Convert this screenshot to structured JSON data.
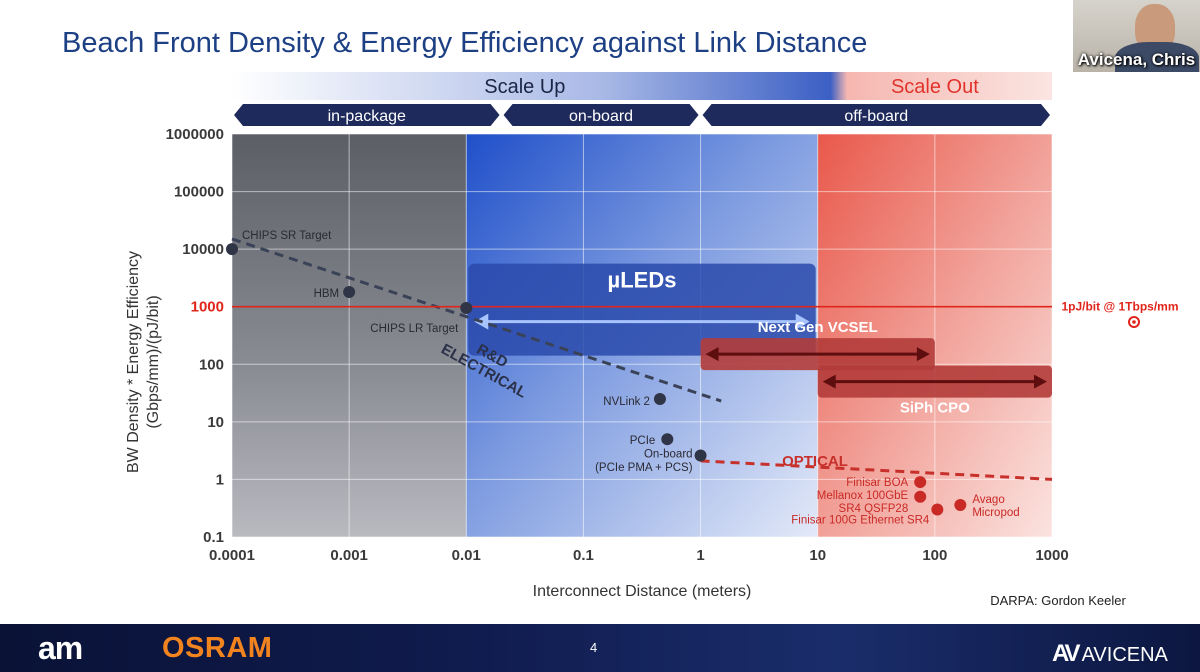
{
  "slide": {
    "title": "Beach Front Density & Energy Efficiency against Link Distance",
    "presenter_name": "Avicena, Chris",
    "page_number": "4",
    "source_credit": "DARPA:  Gordon Keeler",
    "footer_logo_left_1": "am",
    "footer_logo_left_2": "OSRAM",
    "footer_logo_right": "AVICENA",
    "footer_logo_right_mark": "AV"
  },
  "chart_data": {
    "type": "scatter",
    "xlabel": "Interconnect Distance (meters)",
    "ylabel_line1": "BW Density  *  Energy Efficiency",
    "ylabel_line2": "(Gbps/mm)/(pJ/bit)",
    "x_scale": "log",
    "y_scale": "log",
    "xlim": [
      0.0001,
      1000
    ],
    "ylim": [
      0.1,
      1000000
    ],
    "x_ticks": [
      {
        "v": 0.0001,
        "label": "0.0001"
      },
      {
        "v": 0.001,
        "label": "0.001"
      },
      {
        "v": 0.01,
        "label": "0.01"
      },
      {
        "v": 0.1,
        "label": "0.1"
      },
      {
        "v": 1,
        "label": "1"
      },
      {
        "v": 10,
        "label": "10"
      },
      {
        "v": 100,
        "label": "100"
      },
      {
        "v": 1000,
        "label": "1000"
      }
    ],
    "y_ticks": [
      {
        "v": 0.1,
        "label": "0.1"
      },
      {
        "v": 1,
        "label": "1"
      },
      {
        "v": 10,
        "label": "10"
      },
      {
        "v": 100,
        "label": "100"
      },
      {
        "v": 1000,
        "label": "1000"
      },
      {
        "v": 10000,
        "label": "10000"
      },
      {
        "v": 100000,
        "label": "100000"
      },
      {
        "v": 1000000,
        "label": "1000000"
      }
    ],
    "grid": true,
    "top_bands": [
      {
        "label": "Scale Up",
        "x_from": 0.0001,
        "x_to": 10,
        "color": "#2d4ea3"
      },
      {
        "label": "Scale Out",
        "x_from": 10,
        "x_to": 1000,
        "color": "#e0332b"
      }
    ],
    "segments": [
      {
        "label": "in-package",
        "x_from": 0.0001,
        "x_to": 0.02
      },
      {
        "label": "on-board",
        "x_from": 0.02,
        "x_to": 1
      },
      {
        "label": "off-board",
        "x_from": 1,
        "x_to": 1000
      }
    ],
    "regions": [
      {
        "x_from": 0.0001,
        "x_to": 0.01,
        "color": "#555760"
      },
      {
        "x_from": 0.01,
        "x_to": 10,
        "color": "#2f5bd0"
      },
      {
        "x_from": 10,
        "x_to": 1000,
        "color": "#e8473c"
      }
    ],
    "reference_line": {
      "y": 1000,
      "label": "1pJ/bit @ 1Tbps/mm",
      "color": "#e0251b",
      "y_tick_label": "1000"
    },
    "electrical_points": [
      {
        "label": "CHIPS SR Target",
        "x": 0.0001,
        "y": 10000
      },
      {
        "label": "HBM",
        "x": 0.001,
        "y": 1800
      },
      {
        "label": "CHIPS LR Target",
        "x": 0.01,
        "y": 950
      },
      {
        "label": "NVLink 2",
        "x": 0.45,
        "y": 25
      },
      {
        "label": "PCIe",
        "x": 0.52,
        "y": 5
      },
      {
        "label": "On-board\n(PCIe  PMA + PCS)",
        "x": 1,
        "y": 2.6
      }
    ],
    "optical_points": [
      {
        "label": "Finisar BOA",
        "x": 75,
        "y": 0.9
      },
      {
        "label": "Mellanox 100GbE\nSR4 QSFP28",
        "x": 75,
        "y": 0.5
      },
      {
        "label": "Finisar 100G Ethernet SR4",
        "x": 105,
        "y": 0.3
      },
      {
        "label": "Avago\nMicropod",
        "x": 165,
        "y": 0.36
      }
    ],
    "trend_lines": [
      {
        "label": "R&D\nELECTRICAL",
        "points": [
          [
            0.0001,
            15000
          ],
          [
            1.5,
            23
          ]
        ],
        "color": "#3a4257"
      },
      {
        "label": "OPTICAL",
        "points": [
          [
            1,
            2.1
          ],
          [
            1000,
            1.0
          ]
        ],
        "color": "#c7302b"
      }
    ],
    "ranges": [
      {
        "label": "µLEDs",
        "x_from": 0.01,
        "x_to": 10,
        "y": 550,
        "color": "#1e3a96"
      },
      {
        "label": "Next Gen VCSEL",
        "x_from": 1,
        "x_to": 100,
        "y": 150,
        "color": "#8a1c1c"
      },
      {
        "label": "SiPh CPO",
        "x_from": 10,
        "x_to": 1000,
        "y": 50,
        "color": "#8a1c1c"
      }
    ]
  }
}
